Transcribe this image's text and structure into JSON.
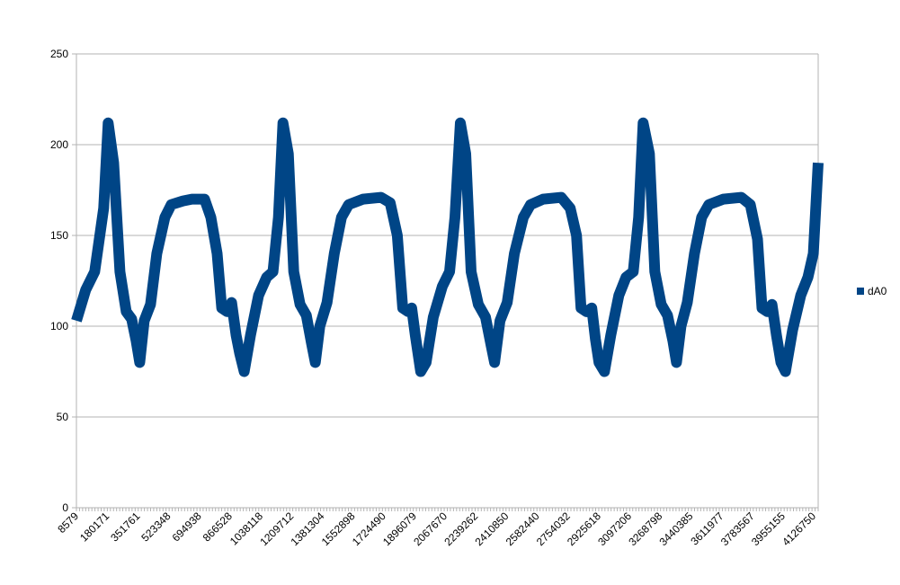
{
  "chart_data": {
    "type": "line",
    "title": "",
    "xlabel": "",
    "ylabel": "",
    "ylim": [
      0,
      250
    ],
    "yticks": [
      0,
      50,
      100,
      150,
      200,
      250
    ],
    "x_categories": [
      "8579",
      "180171",
      "351761",
      "523348",
      "694938",
      "866528",
      "1038118",
      "1209712",
      "1381304",
      "1552898",
      "1724490",
      "1896079",
      "2067670",
      "2239262",
      "2410850",
      "2582440",
      "2754032",
      "2925618",
      "3097206",
      "3268798",
      "3440385",
      "3611977",
      "3783567",
      "3955155",
      "4126750"
    ],
    "x_range": [
      8579,
      4126750
    ],
    "grid": "horizontal",
    "legend": "right",
    "series": [
      {
        "name": "dA0",
        "color": "#004586",
        "points": [
          [
            8579,
            103
          ],
          [
            60000,
            120
          ],
          [
            110000,
            130
          ],
          [
            160000,
            165
          ],
          [
            185000,
            212
          ],
          [
            215000,
            190
          ],
          [
            250000,
            130
          ],
          [
            285000,
            108
          ],
          [
            315000,
            104
          ],
          [
            340000,
            92
          ],
          [
            360000,
            80
          ],
          [
            385000,
            103
          ],
          [
            420000,
            112
          ],
          [
            455000,
            140
          ],
          [
            500000,
            160
          ],
          [
            535000,
            167
          ],
          [
            600000,
            169
          ],
          [
            650000,
            170
          ],
          [
            720000,
            170
          ],
          [
            755000,
            160
          ],
          [
            790000,
            140
          ],
          [
            815000,
            110
          ],
          [
            845000,
            108
          ],
          [
            870000,
            113
          ],
          [
            895000,
            95
          ],
          [
            915000,
            85
          ],
          [
            940000,
            75
          ],
          [
            975000,
            95
          ],
          [
            1020000,
            117
          ],
          [
            1065000,
            127
          ],
          [
            1100000,
            130
          ],
          [
            1130000,
            160
          ],
          [
            1155000,
            212
          ],
          [
            1185000,
            195
          ],
          [
            1215000,
            130
          ],
          [
            1250000,
            112
          ],
          [
            1285000,
            106
          ],
          [
            1315000,
            90
          ],
          [
            1335000,
            80
          ],
          [
            1360000,
            100
          ],
          [
            1400000,
            113
          ],
          [
            1440000,
            140
          ],
          [
            1480000,
            160
          ],
          [
            1520000,
            167
          ],
          [
            1600000,
            170
          ],
          [
            1700000,
            171
          ],
          [
            1750000,
            168
          ],
          [
            1790000,
            150
          ],
          [
            1820000,
            110
          ],
          [
            1850000,
            108
          ],
          [
            1870000,
            110
          ],
          [
            1890000,
            95
          ],
          [
            1920000,
            75
          ],
          [
            1950000,
            80
          ],
          [
            1990000,
            105
          ],
          [
            2040000,
            122
          ],
          [
            2080000,
            130
          ],
          [
            2110000,
            160
          ],
          [
            2140000,
            212
          ],
          [
            2170000,
            195
          ],
          [
            2200000,
            130
          ],
          [
            2240000,
            112
          ],
          [
            2280000,
            105
          ],
          [
            2310000,
            90
          ],
          [
            2330000,
            80
          ],
          [
            2360000,
            103
          ],
          [
            2400000,
            113
          ],
          [
            2440000,
            140
          ],
          [
            2490000,
            160
          ],
          [
            2530000,
            167
          ],
          [
            2600000,
            170
          ],
          [
            2700000,
            171
          ],
          [
            2750000,
            165
          ],
          [
            2785000,
            150
          ],
          [
            2810000,
            110
          ],
          [
            2840000,
            108
          ],
          [
            2870000,
            110
          ],
          [
            2890000,
            93
          ],
          [
            2910000,
            80
          ],
          [
            2940000,
            75
          ],
          [
            2975000,
            95
          ],
          [
            3020000,
            117
          ],
          [
            3060000,
            127
          ],
          [
            3100000,
            130
          ],
          [
            3130000,
            160
          ],
          [
            3155000,
            212
          ],
          [
            3190000,
            195
          ],
          [
            3220000,
            130
          ],
          [
            3255000,
            112
          ],
          [
            3290000,
            106
          ],
          [
            3320000,
            92
          ],
          [
            3340000,
            80
          ],
          [
            3365000,
            100
          ],
          [
            3400000,
            113
          ],
          [
            3440000,
            140
          ],
          [
            3480000,
            160
          ],
          [
            3520000,
            167
          ],
          [
            3600000,
            170
          ],
          [
            3700000,
            171
          ],
          [
            3750000,
            167
          ],
          [
            3790000,
            148
          ],
          [
            3815000,
            110
          ],
          [
            3845000,
            108
          ],
          [
            3870000,
            112
          ],
          [
            3895000,
            95
          ],
          [
            3920000,
            80
          ],
          [
            3945000,
            75
          ],
          [
            3985000,
            98
          ],
          [
            4030000,
            117
          ],
          [
            4070000,
            127
          ],
          [
            4100000,
            140
          ],
          [
            4126750,
            190
          ]
        ]
      }
    ]
  }
}
